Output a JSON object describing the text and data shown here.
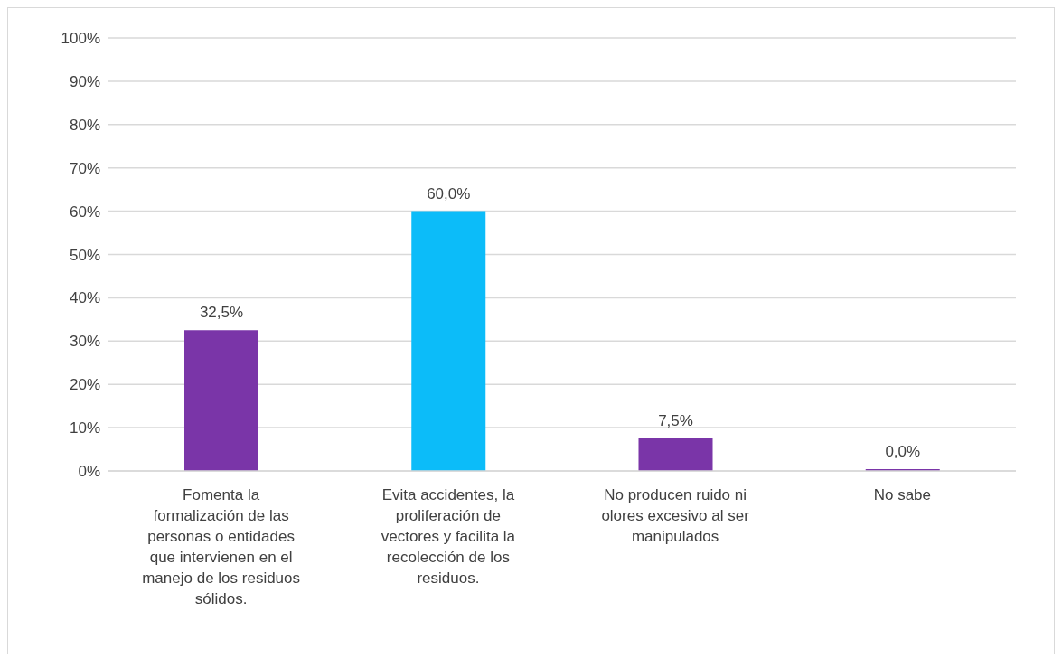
{
  "chart_data": {
    "type": "bar",
    "categories": [
      "Fomenta la formalización de las personas o entidades que intervienen en el manejo de los residuos sólidos.",
      "Evita accidentes, la proliferación de vectores y facilita la recolección de los residuos.",
      "No producen ruido ni olores excesivo al ser manipulados",
      "No sabe"
    ],
    "values": [
      32.5,
      60,
      7.5,
      0
    ],
    "colors": [
      "#7a35a8",
      "#0cbcf9",
      "#7a35a8",
      "#7a35a8"
    ],
    "value_labels": [
      "32,5%",
      "60,0%",
      "7,5%",
      "0,0%"
    ],
    "ylim": [
      0,
      100
    ],
    "yticks": [
      {
        "value": 0,
        "label": "0%"
      },
      {
        "value": 10,
        "label": "10%"
      },
      {
        "value": 20,
        "label": "20%"
      },
      {
        "value": 30,
        "label": "30%"
      },
      {
        "value": 40,
        "label": "40%"
      },
      {
        "value": 50,
        "label": "50%"
      },
      {
        "value": 60,
        "label": "60%"
      },
      {
        "value": 70,
        "label": "70%"
      },
      {
        "value": 80,
        "label": "80%"
      },
      {
        "value": 90,
        "label": "90%"
      },
      {
        "value": 100,
        "label": "100%"
      }
    ],
    "grid": "y"
  }
}
